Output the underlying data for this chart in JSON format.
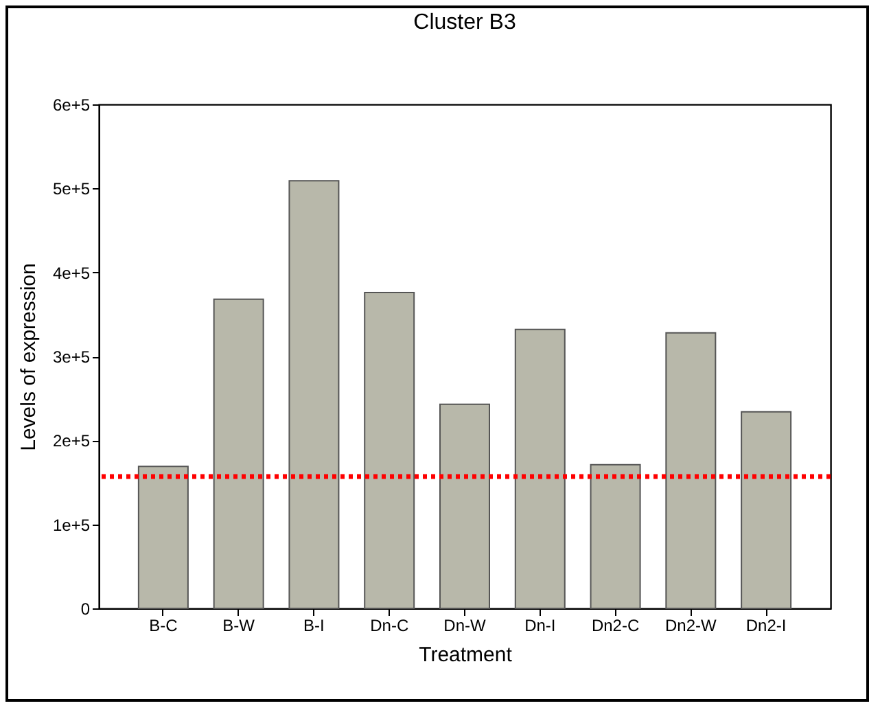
{
  "chart_data": {
    "type": "bar",
    "title": "Cluster B3",
    "xlabel": "Treatment",
    "ylabel": "Levels of expression",
    "categories": [
      "B-C",
      "B-W",
      "B-I",
      "Dn-C",
      "Dn-W",
      "Dn-I",
      "Dn2-C",
      "Dn2-W",
      "Dn2-I"
    ],
    "values": [
      169000,
      368000,
      509000,
      376000,
      243000,
      332000,
      171000,
      328000,
      234000
    ],
    "color": "#b8b8aa",
    "ylim": [
      0,
      600000
    ],
    "yticks": [
      0,
      {
        "value": 100000,
        "label": "1e+5"
      },
      {
        "value": 200000,
        "label": "2e+5"
      },
      {
        "value": 300000,
        "label": "3e+5"
      },
      {
        "value": 400000,
        "label": "4e+5"
      },
      {
        "value": 500000,
        "label": "5e+5"
      },
      {
        "value": 600000,
        "label": "6e+5"
      }
    ],
    "ref_lines": [
      {
        "axis": "y",
        "value": 157000,
        "color": "#ff0000",
        "line_style": "dotted"
      }
    ],
    "grid": false
  }
}
